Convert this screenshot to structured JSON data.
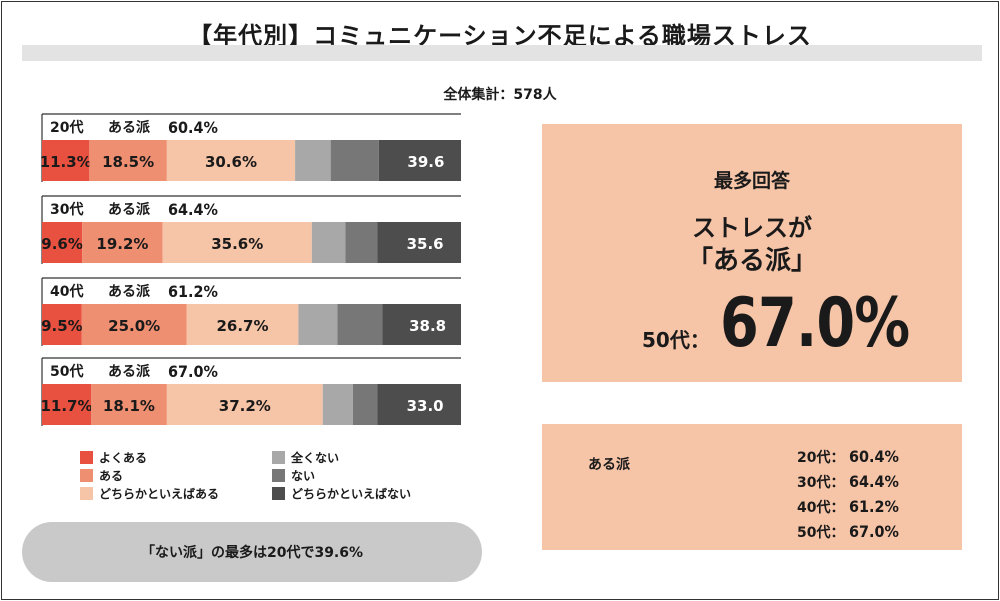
{
  "title": "【年代別】コミュニケーション不足による職場ストレス",
  "total": "全体集計：578人",
  "colors": {
    "よくある": "#e8503f",
    "ある": "#ef8f71",
    "どちらかといえばある": "#f6c4a7",
    "全くない": "#a8a8a8",
    "ない": "#777777",
    "どちらかといえばない": "#4d4d4d"
  },
  "chart_data": {
    "type": "bar",
    "orientation": "horizontal-stacked",
    "categories": [
      "20代",
      "30代",
      "40代",
      "50代"
    ],
    "group_label": "ある派",
    "group_totals": [
      "60.4%",
      "64.4%",
      "61.2%",
      "67.0%"
    ],
    "series": [
      {
        "name": "よくある",
        "values": [
          11.3,
          9.6,
          9.5,
          11.7
        ],
        "labels": [
          "11.3%",
          "9.6%",
          "9.5%",
          "11.7%"
        ]
      },
      {
        "name": "ある",
        "values": [
          18.5,
          19.2,
          25.0,
          18.1
        ],
        "labels": [
          "18.5%",
          "19.2%",
          "25.0%",
          "18.1%"
        ]
      },
      {
        "name": "どちらかといえばある",
        "values": [
          30.6,
          35.6,
          26.7,
          37.2
        ],
        "labels": [
          "30.6%",
          "35.6%",
          "26.7%",
          "37.2%"
        ]
      },
      {
        "name": "全くない",
        "values": [
          8.5,
          8.0,
          9.3,
          7.2
        ],
        "labels": [
          "",
          "",
          "",
          ""
        ]
      },
      {
        "name": "ない",
        "values": [
          11.5,
          7.6,
          10.7,
          5.8
        ],
        "labels": [
          "",
          "",
          "",
          ""
        ]
      },
      {
        "name": "どちらかといえばない",
        "values": [
          19.6,
          20.0,
          18.8,
          20.0
        ],
        "labels": [
          "",
          "",
          "",
          ""
        ]
      }
    ],
    "no_group_totals": [
      "39.6",
      "35.6",
      "38.8",
      "33.0"
    ],
    "legend": [
      "よくある",
      "ある",
      "どちらかといえばある",
      "全くない",
      "ない",
      "どちらかといえばない"
    ],
    "legend_placement": "bottom"
  },
  "pill_text": "「ない派」の最多は20代で39.6%",
  "highlight": {
    "heading": "最多回答",
    "line1": "ストレスが",
    "line2": "「ある派」",
    "label": "50代：",
    "value": "67.0%"
  },
  "summary": {
    "label": "ある派",
    "rows": [
      {
        "age": "20代：",
        "value": "60.4%"
      },
      {
        "age": "30代：",
        "value": "64.4%"
      },
      {
        "age": "40代：",
        "value": "61.2%"
      },
      {
        "age": "50代：",
        "value": "67.0%"
      }
    ]
  }
}
